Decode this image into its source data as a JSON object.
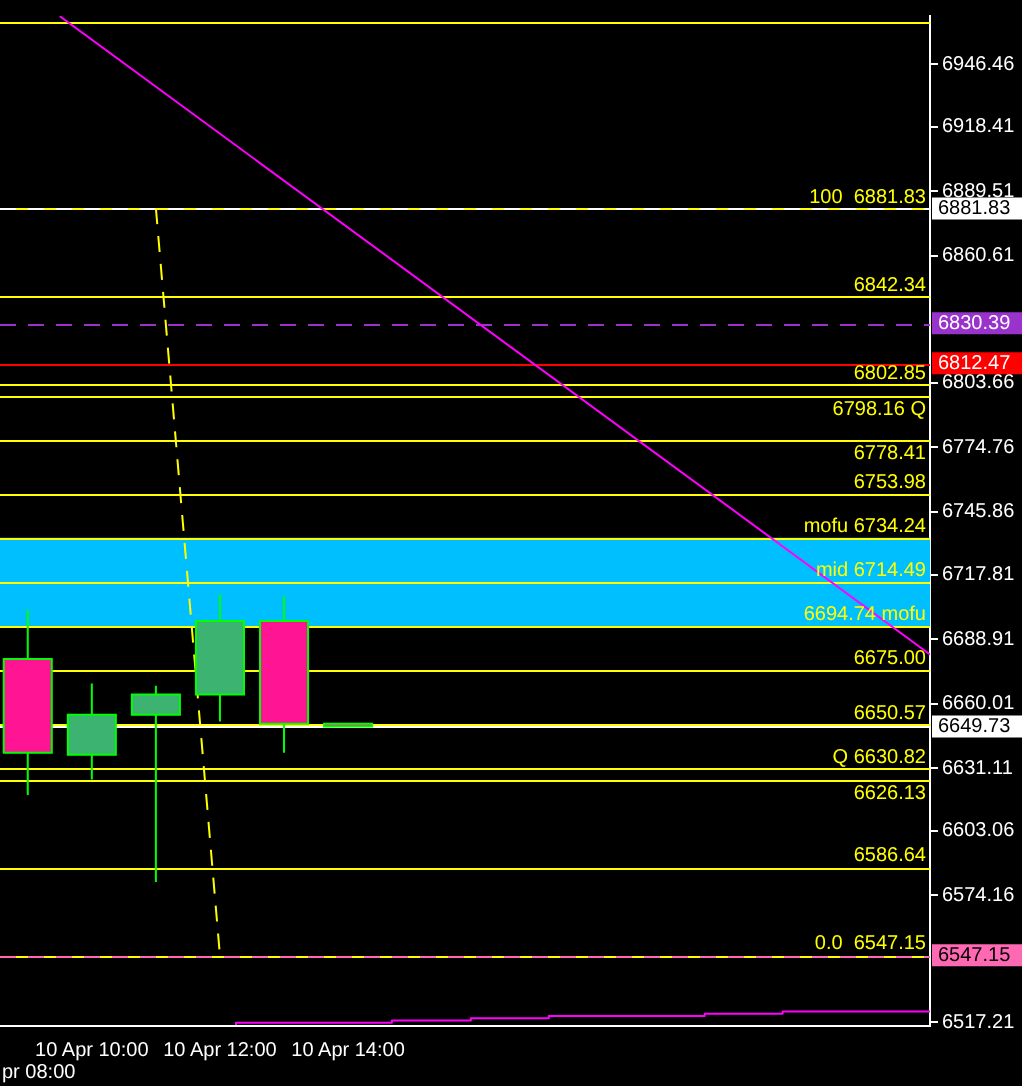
{
  "chart_data": {
    "type": "candlestick",
    "x": [
      "--04-10T09:00",
      "--04-10T10:00",
      "--04-10T11:00",
      "--04-10T12:00",
      "--04-10T13:00",
      "--04-10T14:00"
    ],
    "ohlc": [
      [
        6680,
        6702,
        6619,
        6638
      ],
      [
        6637,
        6669,
        6626,
        6655
      ],
      [
        6655,
        6668,
        6580,
        6664
      ],
      [
        6664,
        6709,
        6652,
        6697
      ],
      [
        6697,
        6708,
        6638,
        6651
      ],
      [
        6651,
        6651,
        6649.73,
        6649.73
      ]
    ],
    "colors": [
      "#ff1493",
      "#3cb371",
      "#3cb371",
      "#3cb371",
      "#ff1493",
      "#ff1493"
    ],
    "color": "#00ff00",
    "series": [
      {
        "type": "line",
        "x": [
          "--04-10T09:30",
          "--04-10T23:05"
        ],
        "values": [
          6968,
          6682
        ],
        "color": "#ff00ff"
      },
      {
        "type": "line",
        "x": [
          "--04-10T11:00",
          "--04-10T12:00"
        ],
        "values": [
          6882,
          6547
        ],
        "color": "#ffff00",
        "line_style": "dashed"
      },
      {
        "type": "step",
        "x": [
          "--04-10T12:15",
          "--04-10T13:28",
          "--04-10T14:41",
          "--04-10T15:55",
          "--04-10T17:08",
          "--04-10T18:20",
          "--04-10T19:34",
          "--04-10T20:47",
          "--04-10T22:00",
          "--04-10T23:05"
        ],
        "values": [
          6516,
          6517,
          6517,
          6518,
          6519,
          6520,
          6520,
          6521,
          6522,
          6522
        ],
        "color": "#ff00ff"
      }
    ],
    "xlim": [
      "--04-10T08:34",
      "--04-10T23:05"
    ],
    "xticks": [
      {
        "value": "--04-10T10:00",
        "label": "10 Apr 10:00"
      },
      {
        "value": "--04-10T12:00",
        "label": "10 Apr 12:00"
      },
      {
        "value": "--04-10T14:00",
        "label": "10 Apr 14:00"
      }
    ],
    "ylim": [
      6515.5,
      6968.1
    ],
    "yticks": [
      6517.21,
      6574.16,
      6603.06,
      6631.11,
      6660.01,
      6688.91,
      6717.81,
      6745.86,
      6774.76,
      6803.66,
      6860.61,
      6889.51,
      6918.41,
      6946.46
    ],
    "bands": [
      {
        "axis": "y",
        "from": 6694.74,
        "to": 6734.24,
        "color": "#00bfff"
      }
    ],
    "ref_lines": [
      {
        "axis": "y",
        "value": 6965.5,
        "color": "#ffff00"
      },
      {
        "axis": "y",
        "value": 6881.83,
        "label": "100  6881.83",
        "color": "#ffff00"
      },
      {
        "axis": "y",
        "value": 6842.34,
        "label": "6842.34",
        "color": "#ffff00"
      },
      {
        "axis": "y",
        "value": 6802.85,
        "label": "6802.85",
        "color": "#ffff00"
      },
      {
        "axis": "y",
        "value": 6798.16,
        "label": "6798.16 Q",
        "color": "#ffff00"
      },
      {
        "axis": "y",
        "value": 6778.41,
        "label": "6778.41",
        "color": "#ffff00"
      },
      {
        "axis": "y",
        "value": 6753.98,
        "label": "6753.98",
        "color": "#ffff00"
      },
      {
        "axis": "y",
        "value": 6734.24,
        "label": "mofu 6734.24",
        "color": "#ffff00"
      },
      {
        "axis": "y",
        "value": 6714.49,
        "label": "mid 6714.49",
        "color": "#ffff00"
      },
      {
        "axis": "y",
        "value": 6694.74,
        "label": "6694.74 mofu",
        "color": "#ffff00"
      },
      {
        "axis": "y",
        "value": 6675.0,
        "label": "6675.00",
        "color": "#ffff00"
      },
      {
        "axis": "y",
        "value": 6650.57,
        "label": "6650.57",
        "color": "#ffff00"
      },
      {
        "axis": "y",
        "value": 6630.82,
        "label": "Q 6630.82",
        "color": "#ffff00"
      },
      {
        "axis": "y",
        "value": 6626.13,
        "label": "6626.13",
        "color": "#ffff00"
      },
      {
        "axis": "y",
        "value": 6586.64,
        "label": "6586.64",
        "color": "#ffff00"
      },
      {
        "axis": "y",
        "value": 6547.15,
        "label": "0.0  6547.15",
        "color": "#ffff00"
      },
      {
        "axis": "y",
        "value": 6881.83,
        "label": "6881.83",
        "color": "#ffffff",
        "line_style": "dashed"
      },
      {
        "axis": "y",
        "value": 6830.39,
        "label": "6830.39",
        "color": "#9933cc",
        "line_style": "dashed"
      },
      {
        "axis": "y",
        "value": 6812.47,
        "label": "6812.47",
        "color": "#ff0000",
        "line_style": "solid"
      },
      {
        "axis": "y",
        "value": 6649.73,
        "label": "6649.73",
        "color": "#ffffff",
        "line_style": "solid"
      },
      {
        "axis": "y",
        "value": 6547.15,
        "label": "6547.15",
        "color": "#ff69b4",
        "line_style": "dashed"
      }
    ],
    "annotations": [
      "pr 08:00"
    ],
    "grid": false,
    "legend": false
  }
}
